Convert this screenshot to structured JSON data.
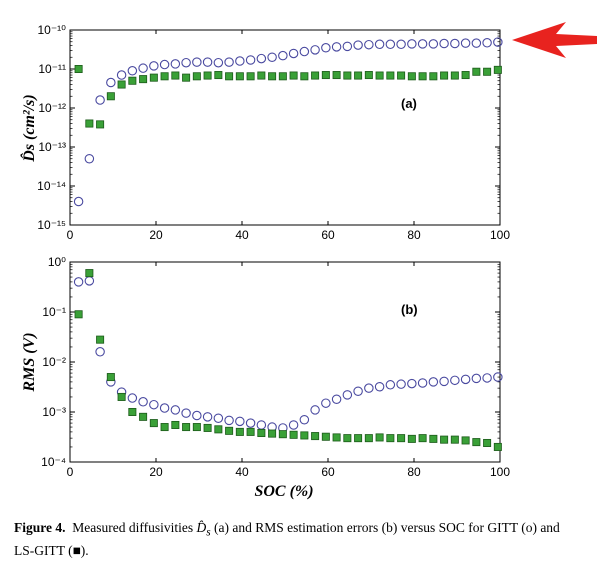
{
  "caption": {
    "figure_label": "Figure 4.",
    "text_before": "Measured diffusivities ",
    "symbol": "D̂",
    "symbol_sub": "s",
    "text_after": " (a) and RMS estimation errors (b) versus SOC for GITT (o) and LS-GITT (",
    "filled_marker": "■",
    "text_end": ")."
  },
  "arrow_color": "#e8231f",
  "colors": {
    "gitt": "#4a4aa0",
    "ls_gitt_fill": "#3aa037",
    "ls_gitt_edge": "#1c5a1a"
  },
  "chart_data": [
    {
      "type": "scatter",
      "panel_label": "(a)",
      "ylabel": "D̂s (cm²/s)",
      "xlabel": "",
      "xlim": [
        0,
        100
      ],
      "ylim": [
        1e-15,
        1e-10
      ],
      "yscale": "log",
      "xticks": [
        "0",
        "20",
        "40",
        "60",
        "80",
        "100"
      ],
      "yticks": [
        "10⁻¹⁵",
        "10⁻¹⁴",
        "10⁻¹³",
        "10⁻¹²",
        "10⁻¹¹",
        "10⁻¹⁰"
      ],
      "series": [
        {
          "name": "GITT",
          "marker": "open-circle",
          "x": [
            2,
            4.5,
            7,
            9.5,
            12,
            14.5,
            17,
            19.5,
            22,
            24.5,
            27,
            29.5,
            32,
            34.5,
            37,
            39.5,
            42,
            44.5,
            47,
            49.5,
            52,
            54.5,
            57,
            59.5,
            62,
            64.5,
            67,
            69.5,
            72,
            74.5,
            77,
            79.5,
            82,
            84.5,
            87,
            89.5,
            92,
            94.5,
            97,
            99.5
          ],
          "y": [
            4e-15,
            5e-14,
            1.6e-12,
            4.5e-12,
            7e-12,
            9e-12,
            1.05e-11,
            1.2e-11,
            1.3e-11,
            1.35e-11,
            1.45e-11,
            1.5e-11,
            1.5e-11,
            1.45e-11,
            1.5e-11,
            1.6e-11,
            1.7e-11,
            1.85e-11,
            2e-11,
            2.2e-11,
            2.5e-11,
            2.8e-11,
            3.1e-11,
            3.5e-11,
            3.7e-11,
            3.8e-11,
            4.1e-11,
            4.2e-11,
            4.3e-11,
            4.3e-11,
            4.3e-11,
            4.4e-11,
            4.4e-11,
            4.4e-11,
            4.5e-11,
            4.5e-11,
            4.6e-11,
            4.6e-11,
            4.7e-11,
            4.9e-11
          ]
        },
        {
          "name": "LS-GITT",
          "marker": "filled-square",
          "x": [
            2,
            4.5,
            7,
            9.5,
            12,
            14.5,
            17,
            19.5,
            22,
            24.5,
            27,
            29.5,
            32,
            34.5,
            37,
            39.5,
            42,
            44.5,
            47,
            49.5,
            52,
            54.5,
            57,
            59.5,
            62,
            64.5,
            67,
            69.5,
            72,
            74.5,
            77,
            79.5,
            82,
            84.5,
            87,
            89.5,
            92,
            94.5,
            97,
            99.5
          ],
          "y": [
            1e-11,
            4e-13,
            3.8e-13,
            2e-12,
            4e-12,
            5e-12,
            5.5e-12,
            6e-12,
            6.5e-12,
            6.8e-12,
            6e-12,
            6.5e-12,
            6.8e-12,
            7e-12,
            6.5e-12,
            6.5e-12,
            6.5e-12,
            6.8e-12,
            6.5e-12,
            6.5e-12,
            6.8e-12,
            6.5e-12,
            6.8e-12,
            7e-12,
            7e-12,
            6.8e-12,
            6.8e-12,
            7e-12,
            6.8e-12,
            6.8e-12,
            6.8e-12,
            6.5e-12,
            6.5e-12,
            6.5e-12,
            6.8e-12,
            6.8e-12,
            7e-12,
            8.5e-12,
            8.5e-12,
            9.5e-12
          ]
        }
      ]
    },
    {
      "type": "scatter",
      "panel_label": "(b)",
      "ylabel": "RMS (V)",
      "xlabel": "SOC (%)",
      "xlim": [
        0,
        100
      ],
      "ylim": [
        0.0001,
        1
      ],
      "yscale": "log",
      "xticks": [
        "0",
        "20",
        "40",
        "60",
        "80",
        "100"
      ],
      "yticks": [
        "10⁻⁴",
        "10⁻³",
        "10⁻²",
        "10⁻¹",
        "10⁰"
      ],
      "series": [
        {
          "name": "GITT",
          "marker": "open-circle",
          "x": [
            2,
            4.5,
            7,
            9.5,
            12,
            14.5,
            17,
            19.5,
            22,
            24.5,
            27,
            29.5,
            32,
            34.5,
            37,
            39.5,
            42,
            44.5,
            47,
            49.5,
            52,
            54.5,
            57,
            59.5,
            62,
            64.5,
            67,
            69.5,
            72,
            74.5,
            77,
            79.5,
            82,
            84.5,
            87,
            89.5,
            92,
            94.5,
            97,
            99.5
          ],
          "y": [
            0.4,
            0.42,
            0.016,
            0.004,
            0.0025,
            0.0019,
            0.0016,
            0.0014,
            0.0012,
            0.0011,
            0.00095,
            0.00085,
            0.0008,
            0.00075,
            0.00068,
            0.00065,
            0.0006,
            0.00055,
            0.0005,
            0.00048,
            0.00055,
            0.0007,
            0.0011,
            0.0015,
            0.0018,
            0.0022,
            0.0026,
            0.003,
            0.0032,
            0.0035,
            0.0036,
            0.0037,
            0.0038,
            0.004,
            0.0041,
            0.0043,
            0.0045,
            0.0047,
            0.0048,
            0.005
          ]
        },
        {
          "name": "LS-GITT",
          "marker": "filled-square",
          "x": [
            2,
            4.5,
            7,
            9.5,
            12,
            14.5,
            17,
            19.5,
            22,
            24.5,
            27,
            29.5,
            32,
            34.5,
            37,
            39.5,
            42,
            44.5,
            47,
            49.5,
            52,
            54.5,
            57,
            59.5,
            62,
            64.5,
            67,
            69.5,
            72,
            74.5,
            77,
            79.5,
            82,
            84.5,
            87,
            89.5,
            92,
            94.5,
            97,
            99.5
          ],
          "y": [
            0.09,
            0.6,
            0.028,
            0.005,
            0.002,
            0.001,
            0.0008,
            0.0006,
            0.0005,
            0.00055,
            0.0005,
            0.0005,
            0.00048,
            0.00045,
            0.00042,
            0.0004,
            0.0004,
            0.00038,
            0.00037,
            0.00036,
            0.00035,
            0.00034,
            0.00033,
            0.00032,
            0.00031,
            0.0003,
            0.0003,
            0.0003,
            0.00031,
            0.0003,
            0.0003,
            0.00029,
            0.0003,
            0.00029,
            0.00028,
            0.00028,
            0.00027,
            0.00025,
            0.00024,
            0.0002
          ]
        }
      ]
    }
  ]
}
